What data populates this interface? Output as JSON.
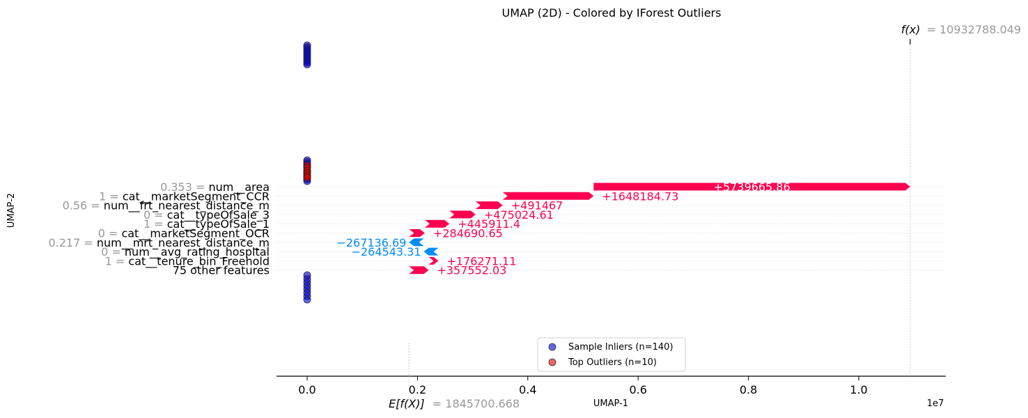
{
  "colors": {
    "positive": "#ff0051",
    "negative": "#008bfb",
    "inlier_fill": "#0000cc",
    "inlier_edge": "#2a2a6a",
    "outlier_fill": "#e00000",
    "muted_text": "#999999"
  },
  "chart_data": {
    "type": "scatter",
    "title": "UMAP (2D) - Colored by IForest Outliers",
    "xlabel": "UMAP-1",
    "ylabel": "UMAP-2",
    "x_ticks": [
      "0.0",
      "0.2",
      "0.4",
      "0.6",
      "0.8",
      "1.0"
    ],
    "x_tick_values": [
      0.0,
      0.2,
      0.4,
      0.6,
      0.8,
      1.0
    ],
    "x_offset_label": "1e7",
    "xlim": [
      -0.055,
      1.16
    ],
    "legend": {
      "placement": "lower-center",
      "entries": [
        {
          "label": "Sample Inliers (n=140)",
          "color": "#0000cc"
        },
        {
          "label": "Top Outliers (n=10)",
          "color": "#e00000"
        }
      ]
    },
    "shap_force": {
      "base_value_label_prefix": "E[f(X)]",
      "base_value": "= 1845700.668",
      "base_value_units": 0.18457,
      "output_value_label_prefix": "f(x)",
      "output_value": "= 10932788.049",
      "output_value_units": 1.09328,
      "features": [
        {
          "value": "0.353 =",
          "name": "num__area",
          "contribution": "+5739665.86",
          "start": 0.5193,
          "end": 1.0933
        },
        {
          "value": "1 =",
          "name": "cat__marketSegment_CCR",
          "contribution": "+1648184.73",
          "start": 0.3545,
          "end": 0.5193
        },
        {
          "value": "0.56 =",
          "name": "num__frt_nearest_distance_m",
          "contribution": "+491467",
          "start": 0.3054,
          "end": 0.3545
        },
        {
          "value": "0 =",
          "name": "cat__typeOfSale_3",
          "contribution": "+475024.61",
          "start": 0.2579,
          "end": 0.3054
        },
        {
          "value": "1 =",
          "name": "cat__typeOfSale_1",
          "contribution": "+445911.4",
          "start": 0.2133,
          "end": 0.2579
        },
        {
          "value": "0 =",
          "name": "cat__marketSegment_OCR",
          "contribution": "+284690.65",
          "start": 0.1848,
          "end": 0.2133
        },
        {
          "value": "0.217 =",
          "name": "num__mrt_nearest_distance_m",
          "contribution": "−267136.69",
          "start": 0.2115,
          "end": 0.1848
        },
        {
          "value": "0 =",
          "name": "num__avg_rating_hospital",
          "contribution": "−264543.31",
          "start": 0.238,
          "end": 0.2115
        },
        {
          "value": "1 =",
          "name": "cat__tenure_bin_Freehold",
          "contribution": "+176271.11",
          "start": 0.2203,
          "end": 0.238
        },
        {
          "value": "",
          "name": "75 other features",
          "contribution": "+357552.03",
          "start": 0.1846,
          "end": 0.2203
        }
      ]
    },
    "series": [
      {
        "name": "Sample Inliers (n=140)",
        "x": [
          0,
          0,
          0,
          0,
          0,
          0,
          0,
          0,
          0,
          0,
          0,
          0,
          0,
          0,
          0,
          0,
          0,
          0,
          0,
          0,
          0,
          0,
          0,
          0,
          0,
          0,
          0,
          0,
          0,
          0,
          0,
          0
        ],
        "y": [
          0.95,
          0.945,
          0.94,
          0.935,
          0.93,
          0.925,
          0.92,
          0.915,
          0.91,
          0.905,
          0.9,
          0.895,
          0.62,
          0.615,
          0.61,
          0.605,
          0.6,
          0.59,
          0.585,
          0.58,
          0.575,
          0.57,
          0.565,
          0.56,
          0.29,
          0.28,
          0.27,
          0.26,
          0.25,
          0.24,
          0.23,
          0.22
        ]
      },
      {
        "name": "Top Outliers (n=10)",
        "x": [
          0,
          0,
          0,
          0,
          0,
          0
        ],
        "y": [
          0.605,
          0.598,
          0.59,
          0.583,
          0.576,
          0.57
        ]
      }
    ]
  }
}
